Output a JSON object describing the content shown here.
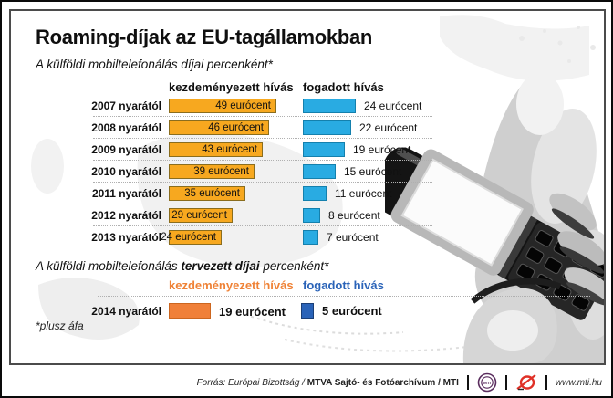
{
  "title": "Roaming-díjak az EU-tagállamokban",
  "section_current": {
    "subtitle": "A külföldi mobiltelefonálás díjai percenként*",
    "col_initiated": "kezdeményezett hívás",
    "col_received": "fogadott hívás"
  },
  "section_planned": {
    "subtitle_prefix": "A külföldi mobiltelefonálás ",
    "subtitle_bold": "tervezett díjai",
    "subtitle_suffix": " percenként*",
    "col_initiated": "kezdeményezett hívás",
    "col_received": "fogadott hívás"
  },
  "footnote": "*plusz áfa",
  "footer": {
    "source_italic": "Forrás: Európai Bizottság / ",
    "source_bold": "MTVA Sajtó- és Fotóarchívum / MTI",
    "mti_logo_text": "MTI",
    "website": "www.mti.hu"
  },
  "colors": {
    "initiated_bar": "#f7a81f",
    "initiated_border": "#8a6d1e",
    "received_bar": "#29abe2",
    "received_border": "#1480ad",
    "planned_initiated": "#f08039",
    "planned_received": "#2a63b8",
    "planned_initiated_label": "#ef8236",
    "planned_received_label": "#2a63b8",
    "mtva_logo_red": "#e03127",
    "mti_logo_purple": "#5a2d5e"
  },
  "chart_data": {
    "type": "bar",
    "title": "Roaming-díjak az EU-tagállamokban",
    "subtitle": "A külföldi mobiltelefonálás díjai percenként*",
    "unit": "eurócent",
    "legend_position": "top",
    "grid": "dotted row separators",
    "xlim": [
      0,
      50
    ],
    "categories": [
      "2007 nyarától",
      "2008 nyarától",
      "2009 nyarától",
      "2010 nyarától",
      "2011 nyarától",
      "2012 nyarától",
      "2013 nyarától"
    ],
    "series": [
      {
        "name": "kezdeményezett hívás",
        "values": [
          49,
          46,
          43,
          39,
          35,
          29,
          24
        ]
      },
      {
        "name": "fogadott hívás",
        "values": [
          24,
          22,
          19,
          15,
          11,
          8,
          7
        ]
      }
    ],
    "rows": [
      {
        "year": "2007 nyarától",
        "initiated": 49,
        "initiated_label": "49 eurócent",
        "received": 24,
        "received_label": "24 eurócent"
      },
      {
        "year": "2008 nyarától",
        "initiated": 46,
        "initiated_label": "46 eurócent",
        "received": 22,
        "received_label": "22 eurócent"
      },
      {
        "year": "2009 nyarától",
        "initiated": 43,
        "initiated_label": "43 eurócent",
        "received": 19,
        "received_label": "19 eurócent"
      },
      {
        "year": "2010 nyarától",
        "initiated": 39,
        "initiated_label": "39 eurócent",
        "received": 15,
        "received_label": "15 eurócent"
      },
      {
        "year": "2011 nyarától",
        "initiated": 35,
        "initiated_label": "35 eurócent",
        "received": 11,
        "received_label": "11 eurócent"
      },
      {
        "year": "2012 nyarától",
        "initiated": 29,
        "initiated_label": "29 eurócent",
        "received": 8,
        "received_label": "8 eurócent"
      },
      {
        "year": "2013 nyarától",
        "initiated": 24,
        "initiated_label": "24 eurócent",
        "received": 7,
        "received_label": "7 eurócent"
      }
    ],
    "planned": {
      "category": "2014 nyarától",
      "initiated": 19,
      "initiated_label": "19 eurócent",
      "received": 5,
      "received_label": "5 eurócent"
    }
  }
}
